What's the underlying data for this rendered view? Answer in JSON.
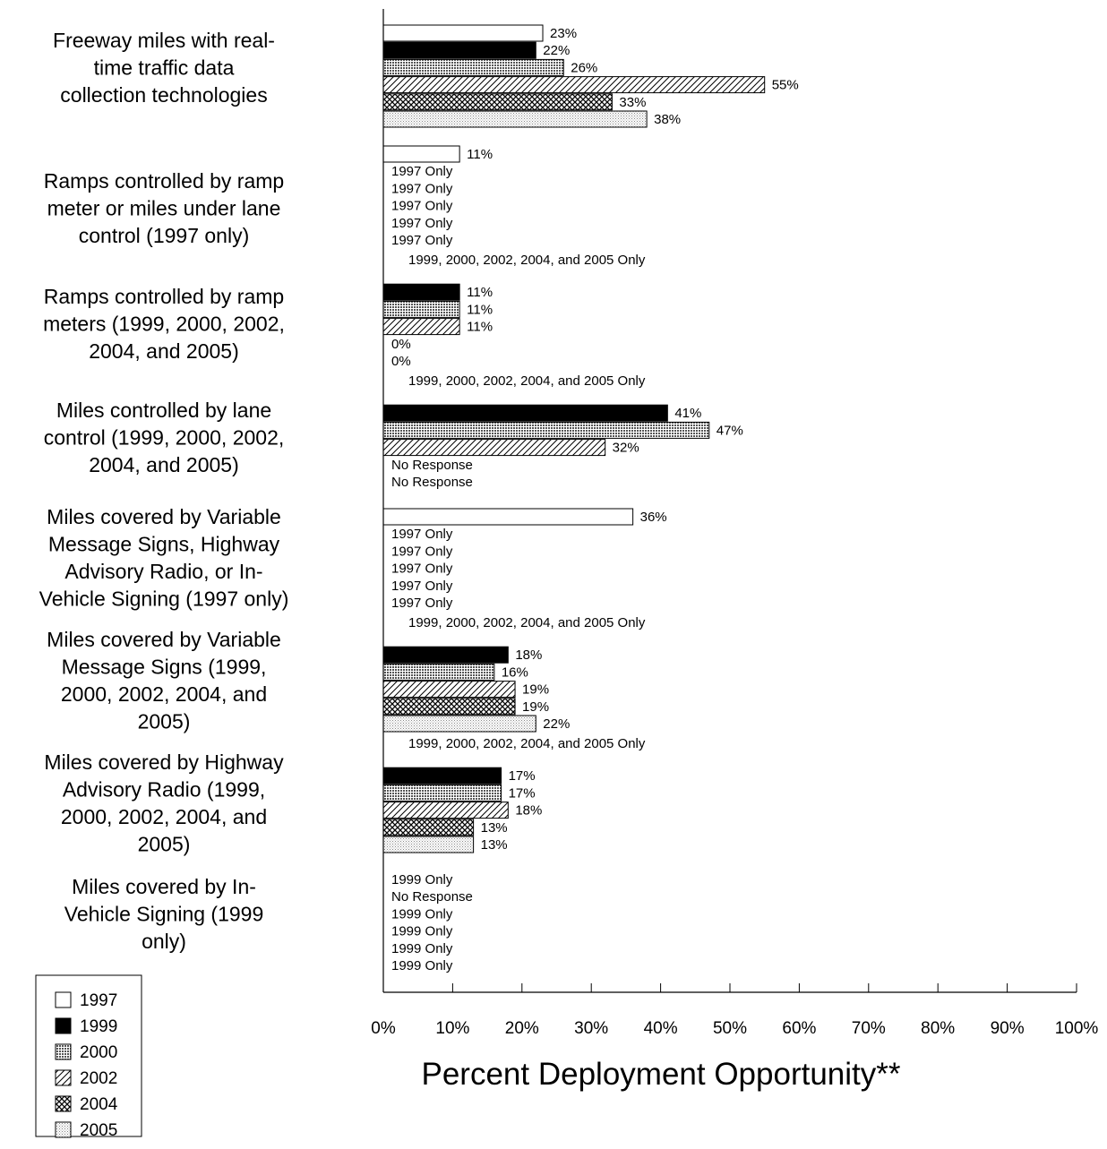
{
  "chart_data": {
    "type": "bar",
    "orientation": "horizontal",
    "xlabel": "Percent Deployment Opportunity**",
    "xlim": [
      0,
      100
    ],
    "xticks": [
      "0%",
      "10%",
      "20%",
      "30%",
      "40%",
      "50%",
      "60%",
      "70%",
      "80%",
      "90%",
      "100%"
    ],
    "series_names": [
      "1997",
      "1999",
      "2000",
      "2002",
      "2004",
      "2005"
    ],
    "legend": {
      "position": "bottom-left",
      "entries": [
        {
          "label": "1997",
          "pattern": "white"
        },
        {
          "label": "1999",
          "pattern": "black"
        },
        {
          "label": "2000",
          "pattern": "dense-grid"
        },
        {
          "label": "2002",
          "pattern": "diagonal"
        },
        {
          "label": "2004",
          "pattern": "crosshatch"
        },
        {
          "label": "2005",
          "pattern": "dots"
        }
      ]
    },
    "categories": [
      {
        "label_lines": [
          "Freeway miles with real-",
          "time traffic data",
          "collection technologies"
        ],
        "rows": [
          {
            "series": "1997",
            "value": 23,
            "label": "23%"
          },
          {
            "series": "1999",
            "value": 22,
            "label": "22%"
          },
          {
            "series": "2000",
            "value": 26,
            "label": "26%"
          },
          {
            "series": "2002",
            "value": 55,
            "label": "55%"
          },
          {
            "series": "2004",
            "value": 33,
            "label": "33%"
          },
          {
            "series": "2005",
            "value": 38,
            "label": "38%"
          }
        ]
      },
      {
        "label_lines": [
          "Ramps controlled by ramp",
          "meter or miles under lane",
          "control (1997 only)"
        ],
        "rows": [
          {
            "series": "1997",
            "value": 11,
            "label": "11%"
          },
          {
            "series": "1999",
            "value": null,
            "label": "1997 Only"
          },
          {
            "series": "2000",
            "value": null,
            "label": "1997 Only"
          },
          {
            "series": "2002",
            "value": null,
            "label": "1997 Only"
          },
          {
            "series": "2004",
            "value": null,
            "label": "1997 Only"
          },
          {
            "series": "2005",
            "value": null,
            "label": "1997 Only"
          }
        ]
      },
      {
        "label_lines": [
          "Ramps controlled by ramp",
          "meters (1999, 2000, 2002,",
          "2004, and 2005)"
        ],
        "header": "1999, 2000, 2002, 2004, and 2005 Only",
        "rows": [
          {
            "series": "1999",
            "value": 11,
            "label": "11%"
          },
          {
            "series": "2000",
            "value": 11,
            "label": "11%"
          },
          {
            "series": "2002",
            "value": 11,
            "label": "11%"
          },
          {
            "series": "2004",
            "value": 0,
            "label": "0%"
          },
          {
            "series": "2005",
            "value": 0,
            "label": "0%"
          }
        ]
      },
      {
        "label_lines": [
          "Miles controlled by lane",
          "control (1999, 2000, 2002,",
          "2004, and 2005)"
        ],
        "header": "1999, 2000, 2002, 2004, and 2005 Only",
        "rows": [
          {
            "series": "1999",
            "value": 41,
            "label": "41%"
          },
          {
            "series": "2000",
            "value": 47,
            "label": "47%"
          },
          {
            "series": "2002",
            "value": 32,
            "label": "32%"
          },
          {
            "series": "2004",
            "value": null,
            "label": "No Response"
          },
          {
            "series": "2005",
            "value": null,
            "label": "No Response"
          }
        ]
      },
      {
        "label_lines": [
          "Miles covered by Variable",
          "Message Signs, Highway",
          "Advisory Radio, or In-",
          "Vehicle Signing (1997 only)"
        ],
        "rows": [
          {
            "series": "1997",
            "value": 36,
            "label": "36%"
          },
          {
            "series": "1999",
            "value": null,
            "label": "1997 Only"
          },
          {
            "series": "2000",
            "value": null,
            "label": "1997 Only"
          },
          {
            "series": "2002",
            "value": null,
            "label": "1997 Only"
          },
          {
            "series": "2004",
            "value": null,
            "label": "1997 Only"
          },
          {
            "series": "2005",
            "value": null,
            "label": "1997 Only"
          }
        ]
      },
      {
        "label_lines": [
          "Miles covered by Variable",
          "Message Signs (1999,",
          "2000, 2002, 2004, and",
          "2005)"
        ],
        "header": "1999, 2000, 2002, 2004, and 2005 Only",
        "rows": [
          {
            "series": "1999",
            "value": 18,
            "label": "18%"
          },
          {
            "series": "2000",
            "value": 16,
            "label": "16%"
          },
          {
            "series": "2002",
            "value": 19,
            "label": "19%"
          },
          {
            "series": "2004",
            "value": 19,
            "label": "19%"
          },
          {
            "series": "2005",
            "value": 22,
            "label": "22%"
          }
        ]
      },
      {
        "label_lines": [
          "Miles covered by Highway",
          "Advisory Radio (1999,",
          "2000,  2002, 2004, and",
          "2005)"
        ],
        "header": "1999, 2000, 2002, 2004, and 2005 Only",
        "rows": [
          {
            "series": "1999",
            "value": 17,
            "label": "17%"
          },
          {
            "series": "2000",
            "value": 17,
            "label": "17%"
          },
          {
            "series": "2002",
            "value": 18,
            "label": "18%"
          },
          {
            "series": "2004",
            "value": 13,
            "label": "13%"
          },
          {
            "series": "2005",
            "value": 13,
            "label": "13%"
          }
        ]
      },
      {
        "label_lines": [
          "Miles covered by In-",
          "Vehicle Signing (1999",
          "only)"
        ],
        "rows": [
          {
            "series": "1997",
            "value": null,
            "label": "1999 Only"
          },
          {
            "series": "1999",
            "value": null,
            "label": "No Response"
          },
          {
            "series": "2000",
            "value": null,
            "label": "1999 Only"
          },
          {
            "series": "2002",
            "value": null,
            "label": "1999 Only"
          },
          {
            "series": "2004",
            "value": null,
            "label": "1999 Only"
          },
          {
            "series": "2005",
            "value": null,
            "label": "1999 Only"
          }
        ]
      }
    ]
  }
}
